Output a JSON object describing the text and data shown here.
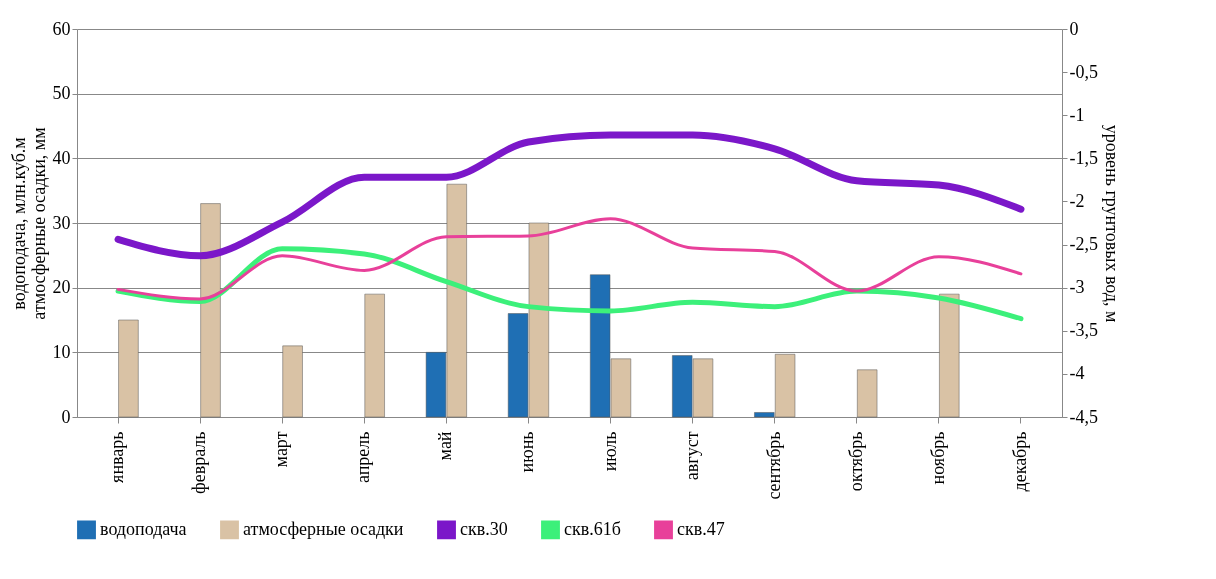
{
  "chart_data": {
    "type": "bar",
    "ylabel": "водоподача, млн.куб.м\nатмосферные осадки, мм",
    "y2label": "уровень грунтовых вод, м",
    "categories": [
      "январь",
      "февраль",
      "март",
      "апрель",
      "май",
      "июнь",
      "июль",
      "август",
      "сентябрь",
      "октябрь",
      "ноябрь",
      "декабрь"
    ],
    "series": [
      {
        "name": "водоподача",
        "color": "#1f6fb4",
        "values": [
          null,
          null,
          null,
          null,
          10,
          16,
          22,
          9.5,
          0.7,
          null,
          null,
          null
        ]
      },
      {
        "name": "атмосферные осадки",
        "color": "#d9c2a5",
        "values": [
          15,
          33,
          11,
          19,
          36,
          30,
          9,
          9,
          9.7,
          7.3,
          19,
          null
        ]
      },
      {
        "name": "скв.30",
        "type": "line",
        "axis": "y2",
        "color": "#7b17c9",
        "values": [
          -2.44,
          -2.63,
          -2.24,
          -1.72,
          -1.72,
          -1.31,
          -1.23,
          -1.23,
          -1.39,
          -1.76,
          -1.81,
          -2.09
        ]
      },
      {
        "name": "скв.61б",
        "type": "line",
        "axis": "y2",
        "color": "#3cf07a",
        "values": [
          -3.04,
          -3.16,
          -2.55,
          -2.61,
          -2.93,
          -3.22,
          -3.27,
          -3.17,
          -3.22,
          -3.04,
          -3.12,
          -3.36
        ]
      },
      {
        "name": "скв.47",
        "type": "line",
        "axis": "y2",
        "color": "#e8409a",
        "values": [
          -3.02,
          -3.13,
          -2.63,
          -2.8,
          -2.41,
          -2.4,
          -2.2,
          -2.54,
          -2.58,
          -3.04,
          -2.64,
          -2.84
        ]
      }
    ],
    "ylim": [
      0,
      60
    ],
    "yticks": [
      0,
      10,
      20,
      30,
      40,
      50,
      60
    ],
    "y2lim": [
      -4.5,
      0
    ],
    "y2ticks": [
      0,
      {
        "value": -0.5,
        "label": "-0,5"
      },
      -1,
      {
        "value": -1.5,
        "label": "-1,5"
      },
      -2,
      {
        "value": -2.5,
        "label": "-2,5"
      },
      -3,
      {
        "value": -3.5,
        "label": "-3,5"
      },
      -4,
      {
        "value": -4.5,
        "label": "-4,5"
      }
    ],
    "grid": "y",
    "legend": "bottom"
  }
}
